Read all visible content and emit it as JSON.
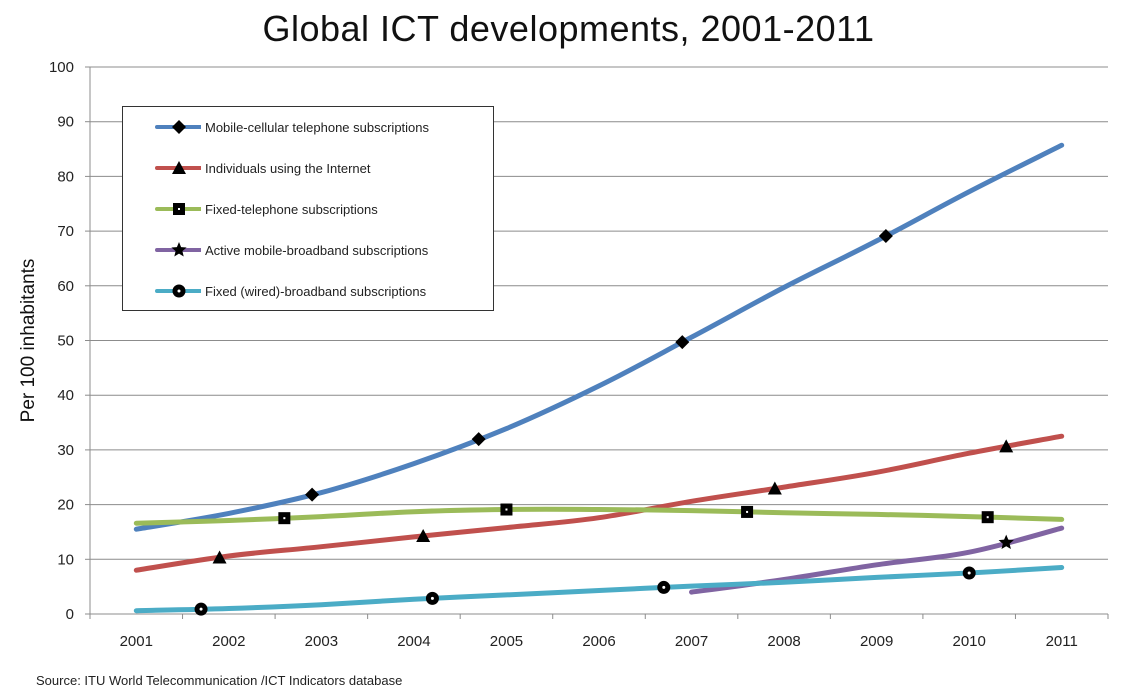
{
  "title": "Global ICT developments, 2001-2011",
  "source": "Source:  ITU World Telecommunication /ICT Indicators database",
  "chart_data": {
    "type": "line",
    "title": "Global ICT developments, 2001-2011",
    "xlabel": "",
    "ylabel": "Per 100 inhabitants",
    "x": [
      2001,
      2002,
      2003,
      2004,
      2005,
      2006,
      2007,
      2008,
      2009,
      2010,
      2011
    ],
    "xticks": [
      "2001",
      "2002",
      "2003",
      "2004",
      "2005",
      "2006",
      "2007",
      "2008",
      "2009",
      "2010",
      "2011"
    ],
    "ylim": [
      0,
      100
    ],
    "yticks": [
      "0",
      "10",
      "20",
      "30",
      "40",
      "50",
      "60",
      "70",
      "80",
      "90",
      "100"
    ],
    "grid": "horizontal",
    "legend_position": "top-left",
    "series": [
      {
        "name": "Mobile-cellular telephone subscriptions",
        "color": "#4F81BD",
        "marker": "diamond",
        "x": [
          2001,
          2002,
          2003,
          2004,
          2005,
          2006,
          2007,
          2008,
          2009,
          2010,
          2011
        ],
        "values": [
          15.5,
          18.4,
          22.2,
          27.5,
          33.9,
          41.7,
          50.6,
          59.7,
          68.2,
          77.2,
          85.7
        ]
      },
      {
        "name": "Individuals using the Internet",
        "color": "#C0504D",
        "marker": "triangle",
        "x": [
          2001,
          2002,
          2003,
          2004,
          2005,
          2006,
          2007,
          2008,
          2009,
          2010,
          2011
        ],
        "values": [
          8.0,
          10.6,
          12.3,
          14.1,
          15.8,
          17.6,
          20.6,
          23.2,
          25.9,
          29.4,
          32.5
        ]
      },
      {
        "name": "Fixed-telephone subscriptions",
        "color": "#9BBB59",
        "marker": "square",
        "x": [
          2001,
          2002,
          2003,
          2004,
          2005,
          2006,
          2007,
          2008,
          2009,
          2010,
          2011
        ],
        "values": [
          16.6,
          17.1,
          17.8,
          18.7,
          19.1,
          19.1,
          18.9,
          18.5,
          18.2,
          17.8,
          17.3
        ]
      },
      {
        "name": "Active mobile-broadband subscriptions",
        "color": "#8064A2",
        "marker": "star",
        "x": [
          2007,
          2008,
          2009,
          2010,
          2011
        ],
        "values": [
          4.0,
          6.3,
          9.0,
          11.3,
          15.7
        ]
      },
      {
        "name": "Fixed (wired)-broadband subscriptions",
        "color": "#4BACC6",
        "marker": "circle",
        "x": [
          2001,
          2002,
          2003,
          2004,
          2005,
          2006,
          2007,
          2008,
          2009,
          2010,
          2011
        ],
        "values": [
          0.6,
          1.0,
          1.7,
          2.7,
          3.5,
          4.3,
          5.1,
          5.8,
          6.7,
          7.5,
          8.5
        ]
      }
    ]
  }
}
